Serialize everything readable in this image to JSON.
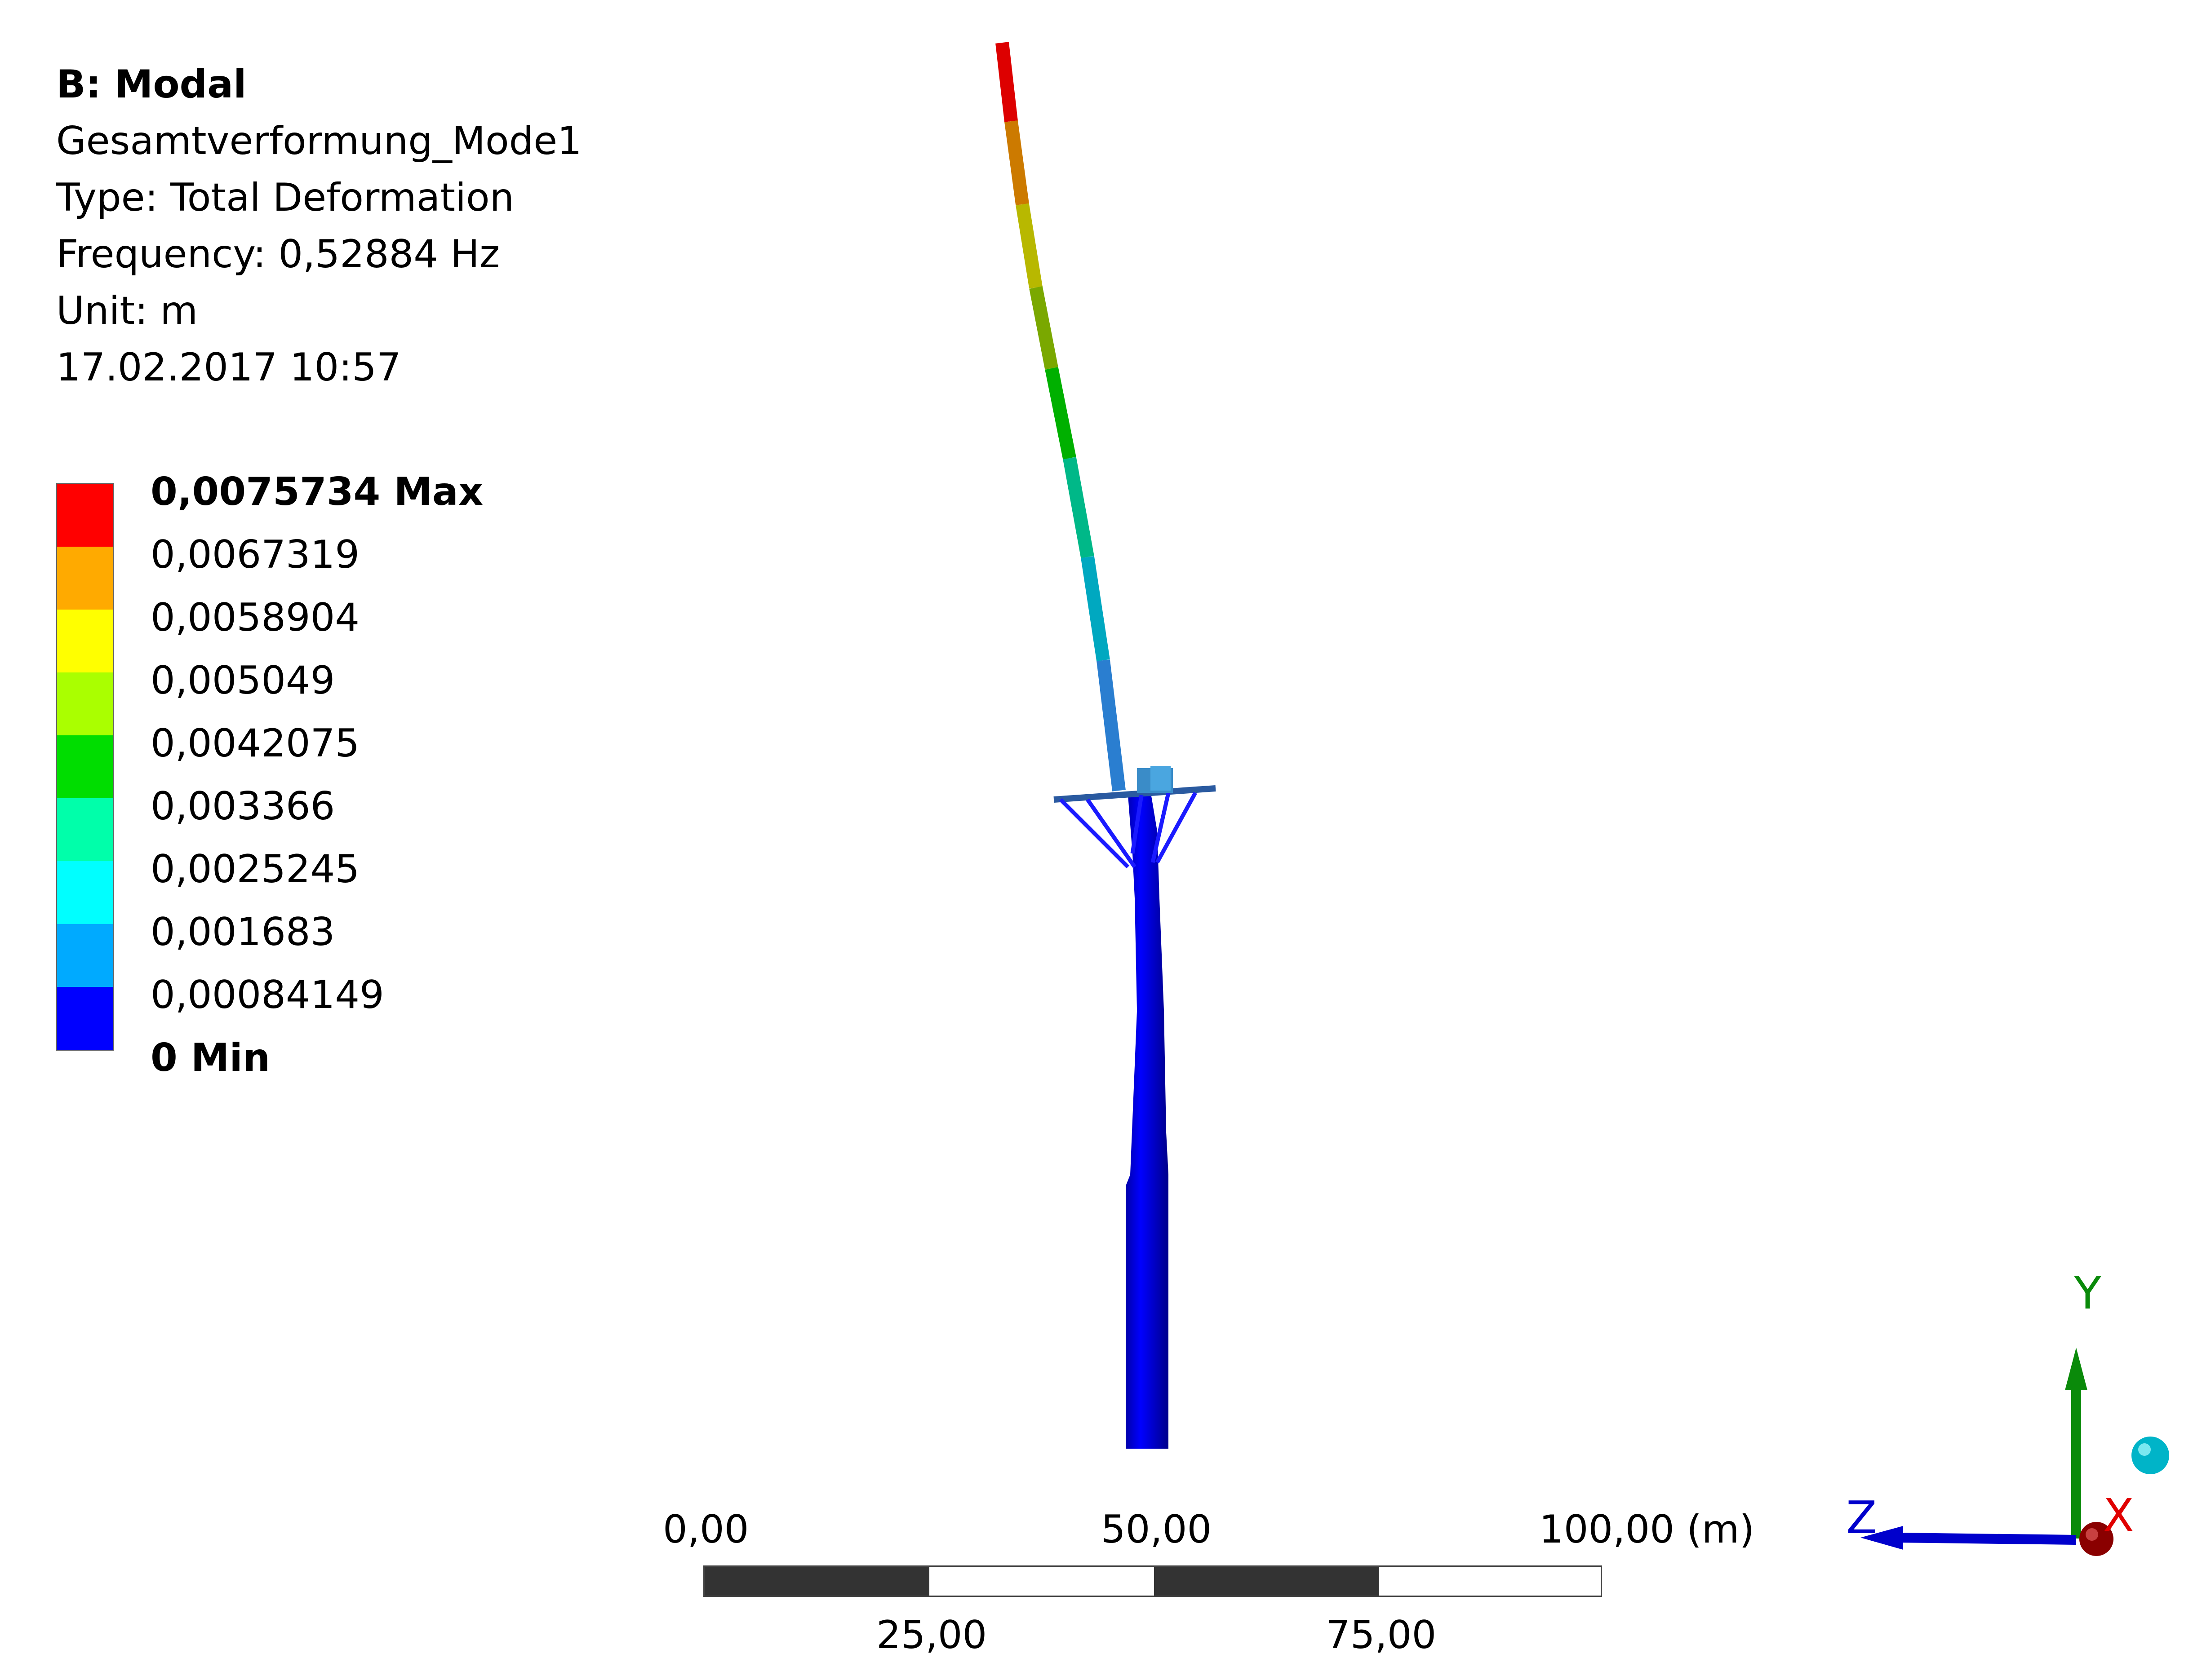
{
  "header": {
    "analysis": "B: Modal",
    "result_name": "Gesamtverformung_Mode1",
    "type": "Type: Total Deformation",
    "frequency": "Frequency: 0,52884 Hz",
    "unit": "Unit: m",
    "timestamp": "17.02.2017 10:57"
  },
  "legend": {
    "labels": [
      "0,0075734 Max",
      "0,0067319",
      "0,0058904",
      "0,005049",
      "0,0042075",
      "0,003366",
      "0,0025245",
      "0,001683",
      "0,00084149",
      "0 Min"
    ],
    "colors": [
      "#ff0000",
      "#ffaa00",
      "#ffff00",
      "#aaff00",
      "#00dd00",
      "#00ffaa",
      "#00ffff",
      "#00aaff",
      "#0000ff"
    ]
  },
  "scale": {
    "top_labels": [
      "0,00",
      "50,00",
      "100,00 (m)"
    ],
    "bottom_labels": [
      "25,00",
      "75,00"
    ]
  },
  "triad": {
    "x_label": "X",
    "y_label": "Y",
    "z_label": "Z"
  }
}
